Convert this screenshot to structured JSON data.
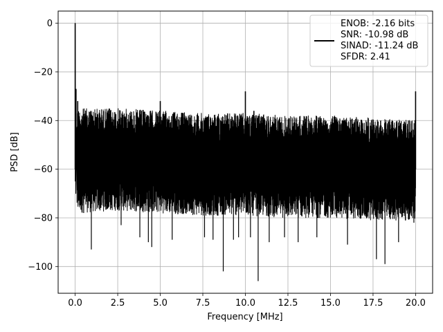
{
  "chart_data": {
    "type": "line",
    "title": "",
    "xlabel": "Frequency [MHz]",
    "ylabel": "PSD [dB]",
    "xlim": [
      -1.0,
      21.0
    ],
    "ylim": [
      -111,
      5
    ],
    "xticks": [
      0.0,
      2.5,
      5.0,
      7.5,
      10.0,
      12.5,
      15.0,
      17.5,
      20.0
    ],
    "xtick_labels": [
      "0.0",
      "2.5",
      "5.0",
      "7.5",
      "10.0",
      "12.5",
      "15.0",
      "17.5",
      "20.0"
    ],
    "yticks": [
      0,
      -20,
      -40,
      -60,
      -80,
      -100
    ],
    "ytick_labels": [
      "0",
      "−20",
      "−40",
      "−60",
      "−80",
      "−100"
    ],
    "grid": true,
    "legend_position": "upper-right",
    "series": [
      {
        "name": "ENOB: -2.16 bits\nSNR: -10.98 dB\nSINAD: -11.24 dB\nSFDR: 2.41",
        "color": "#000000",
        "noise_band": {
          "x": [
            0.1,
            2.5,
            5.0,
            7.5,
            10.0,
            12.5,
            15.0,
            17.5,
            20.0
          ],
          "upper": [
            -35,
            -35,
            -36,
            -37,
            -37,
            -38,
            -38,
            -39,
            -40
          ],
          "lower": [
            -78,
            -77,
            -78,
            -79,
            -79,
            -80,
            -80,
            -81,
            -81
          ]
        },
        "peaks": [
          {
            "x": 0.0,
            "y": 0
          },
          {
            "x": 0.05,
            "y": -27
          },
          {
            "x": 0.15,
            "y": -32
          },
          {
            "x": 5.0,
            "y": -32
          },
          {
            "x": 10.0,
            "y": -28
          },
          {
            "x": 10.5,
            "y": -36
          },
          {
            "x": 20.0,
            "y": -28
          }
        ],
        "dips": [
          {
            "x": 0.5,
            "y": -78
          },
          {
            "x": 0.95,
            "y": -93
          },
          {
            "x": 2.7,
            "y": -83
          },
          {
            "x": 3.8,
            "y": -88
          },
          {
            "x": 4.3,
            "y": -90
          },
          {
            "x": 4.5,
            "y": -92
          },
          {
            "x": 5.7,
            "y": -89
          },
          {
            "x": 7.6,
            "y": -88
          },
          {
            "x": 8.1,
            "y": -89
          },
          {
            "x": 8.7,
            "y": -102
          },
          {
            "x": 9.3,
            "y": -89
          },
          {
            "x": 9.6,
            "y": -88
          },
          {
            "x": 10.3,
            "y": -88
          },
          {
            "x": 10.75,
            "y": -106
          },
          {
            "x": 11.4,
            "y": -90
          },
          {
            "x": 12.3,
            "y": -88
          },
          {
            "x": 13.1,
            "y": -90
          },
          {
            "x": 14.2,
            "y": -88
          },
          {
            "x": 16.0,
            "y": -91
          },
          {
            "x": 17.7,
            "y": -97
          },
          {
            "x": 18.2,
            "y": -99
          },
          {
            "x": 19.0,
            "y": -90
          },
          {
            "x": 19.9,
            "y": -82
          }
        ]
      }
    ]
  }
}
